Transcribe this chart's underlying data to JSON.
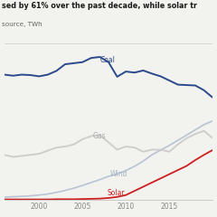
{
  "title": "sed by 61% over the past decade, while solar tr",
  "subtitle": "source, TWh",
  "background_color": "#f2f2ee",
  "years": [
    1996,
    1997,
    1998,
    1999,
    2000,
    2001,
    2002,
    2003,
    2004,
    2005,
    2006,
    2007,
    2008,
    2009,
    2010,
    2011,
    2012,
    2013,
    2014,
    2015,
    2016,
    2017,
    2018,
    2019,
    2020
  ],
  "coal": [
    600,
    595,
    600,
    598,
    592,
    600,
    618,
    650,
    655,
    660,
    680,
    685,
    660,
    590,
    615,
    610,
    620,
    605,
    592,
    572,
    552,
    550,
    548,
    525,
    490
  ],
  "gas": [
    215,
    205,
    210,
    215,
    220,
    235,
    250,
    255,
    265,
    290,
    305,
    310,
    275,
    240,
    255,
    250,
    230,
    240,
    240,
    230,
    265,
    295,
    315,
    330,
    295
  ],
  "wind": [
    12,
    14,
    16,
    18,
    22,
    27,
    35,
    44,
    55,
    68,
    82,
    96,
    112,
    123,
    140,
    160,
    185,
    215,
    238,
    260,
    285,
    310,
    335,
    360,
    378
  ],
  "solar": [
    1,
    1,
    1,
    1,
    1,
    1,
    2,
    2,
    2,
    3,
    4,
    5,
    8,
    13,
    22,
    42,
    62,
    82,
    102,
    122,
    142,
    162,
    190,
    215,
    238
  ],
  "coal_color": "#2b4a8c",
  "gas_color": "#cccccc",
  "wind_color": "#b8c4d4",
  "solar_color": "#cc2020",
  "label_color_coal": "#2b4a8c",
  "label_color_gas": "#aaaaaa",
  "label_color_wind": "#a8b4c4",
  "label_color_solar": "#cc2020",
  "ylim": [
    0,
    750
  ],
  "xlim": [
    1996,
    2020
  ],
  "xticks": [
    2000,
    2005,
    2010,
    2015
  ],
  "xtick_labels": [
    "2000",
    "2005",
    "2010",
    "2015"
  ]
}
